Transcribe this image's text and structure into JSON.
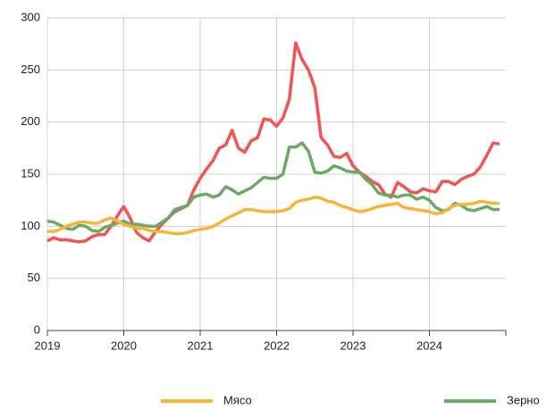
{
  "chart_data": {
    "type": "line",
    "x": [
      2019,
      2019.083,
      2019.167,
      2019.25,
      2019.333,
      2019.417,
      2019.5,
      2019.583,
      2019.667,
      2019.75,
      2019.833,
      2019.917,
      2020,
      2020.083,
      2020.167,
      2020.25,
      2020.333,
      2020.417,
      2020.5,
      2020.583,
      2020.667,
      2020.75,
      2020.833,
      2020.917,
      2021,
      2021.083,
      2021.167,
      2021.25,
      2021.333,
      2021.417,
      2021.5,
      2021.583,
      2021.667,
      2021.75,
      2021.833,
      2021.917,
      2022,
      2022.083,
      2022.167,
      2022.25,
      2022.333,
      2022.417,
      2022.5,
      2022.583,
      2022.667,
      2022.75,
      2022.833,
      2022.917,
      2023,
      2023.083,
      2023.167,
      2023.25,
      2023.333,
      2023.417,
      2023.5,
      2023.583,
      2023.667,
      2023.75,
      2023.833,
      2023.917,
      2024,
      2024.083,
      2024.167,
      2024.25,
      2024.333,
      2024.417,
      2024.5,
      2024.583,
      2024.667,
      2024.75,
      2024.833,
      2024.917
    ],
    "series": [
      {
        "color": "#f05454",
        "values": [
          86,
          89,
          87,
          87,
          86,
          85,
          86,
          90,
          92,
          92,
          100,
          110,
          119,
          108,
          94,
          89,
          86,
          95,
          102,
          108,
          114,
          117,
          120,
          135,
          146,
          155,
          163,
          175,
          178,
          192,
          175,
          171,
          182,
          185,
          203,
          202,
          196,
          204,
          222,
          276,
          260,
          250,
          233,
          185,
          178,
          167,
          166,
          170,
          158,
          152,
          148,
          143,
          140,
          131,
          128,
          142,
          138,
          133,
          132,
          136,
          134,
          133,
          143,
          143,
          140,
          145,
          148,
          150,
          157,
          168,
          180,
          179
        ]
      },
      {
        "name": "Зерно",
        "color": "#6aaa64",
        "values": [
          105,
          104,
          101,
          98,
          97,
          101,
          100,
          96,
          95,
          99,
          101,
          103,
          105,
          102,
          102,
          101,
          100,
          100,
          104,
          108,
          116,
          118,
          120,
          128,
          130,
          131,
          128,
          130,
          138,
          135,
          131,
          134,
          137,
          142,
          147,
          146,
          146,
          150,
          176,
          176,
          180,
          172,
          152,
          151,
          153,
          158,
          156,
          153,
          152,
          152,
          145,
          140,
          132,
          130,
          130,
          128,
          130,
          130,
          126,
          128,
          125,
          118,
          115,
          116,
          122,
          120,
          116,
          115,
          117,
          119,
          116,
          116
        ]
      },
      {
        "name": "Мясо",
        "color": "#f7b538",
        "values": [
          95,
          95,
          97,
          100,
          102,
          104,
          104,
          103,
          103,
          106,
          108,
          105,
          102,
          100,
          98,
          98,
          96,
          95,
          95,
          94,
          93,
          93,
          94,
          96,
          97,
          98,
          100,
          103,
          107,
          110,
          113,
          116,
          116,
          115,
          114,
          114,
          114,
          115,
          117,
          123,
          125,
          126,
          128,
          127,
          124,
          123,
          120,
          118,
          116,
          114,
          115,
          117,
          119,
          120,
          121,
          122,
          118,
          117,
          116,
          115,
          114,
          112,
          113,
          117,
          120,
          121,
          121,
          122,
          124,
          123,
          122,
          122
        ]
      }
    ],
    "xlim": [
      2019,
      2025
    ],
    "xticks": [
      2019,
      2020,
      2021,
      2022,
      2023,
      2024
    ],
    "ylim": [
      0,
      300
    ],
    "yticks": [
      0,
      50,
      100,
      150,
      200,
      250,
      300
    ],
    "grid": true
  }
}
